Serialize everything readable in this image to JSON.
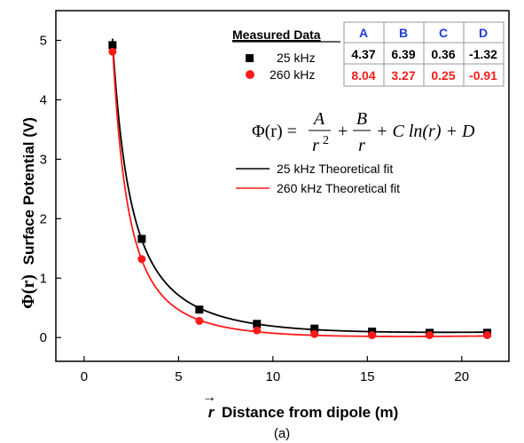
{
  "chart_data": {
    "type": "scatter",
    "title": "",
    "xlabel": "Distance from dipole (m)",
    "xlabel_vector": "r",
    "ylabel": "Surface Potential (V)",
    "ylabel_prefix": "Φ(r)",
    "xlim": [
      -1.5,
      22.5
    ],
    "ylim": [
      -0.4,
      5.5
    ],
    "x_ticks": [
      0,
      5,
      10,
      15,
      20
    ],
    "y_ticks": [
      0,
      1,
      2,
      3,
      4,
      5
    ],
    "grid": false,
    "legend_placement": "top-right",
    "legend_title": "Measured Data",
    "series": [
      {
        "name": "25 kHz",
        "marker": "square",
        "color": "#000000",
        "x": [
          1.5,
          3.05,
          6.1,
          9.15,
          12.2,
          15.25,
          18.3,
          21.35
        ],
        "y": [
          4.92,
          1.66,
          0.47,
          0.23,
          0.15,
          0.1,
          0.08,
          0.08
        ]
      },
      {
        "name": "260 kHz",
        "marker": "circle",
        "color": "#ff1a1a",
        "x": [
          1.5,
          3.05,
          6.1,
          9.15,
          12.2,
          15.25,
          18.3,
          21.35
        ],
        "y": [
          4.81,
          1.32,
          0.28,
          0.12,
          0.06,
          0.04,
          0.04,
          0.04
        ]
      }
    ],
    "fit_lines": [
      {
        "name": "25 kHz Theoretical fit",
        "color": "#000000",
        "A": 4.37,
        "B": 6.39,
        "C": 0.36,
        "D": -1.32
      },
      {
        "name": "260 kHz Theoretical fit",
        "color": "#ff1a1a",
        "A": 8.04,
        "B": 3.27,
        "C": 0.25,
        "D": -0.91
      }
    ],
    "fit_table": {
      "headers": [
        "A",
        "B",
        "C",
        "D"
      ],
      "rows": [
        {
          "color": "#000000",
          "values": [
            "4.37",
            "6.39",
            "0.36",
            "-1.32"
          ]
        },
        {
          "color": "#ff1a1a",
          "values": [
            "8.04",
            "3.27",
            "0.25",
            "-0.91"
          ]
        }
      ]
    },
    "formula": {
      "lhs": "Φ(r) =",
      "t1_num": "A",
      "t1_den": "r",
      "t1_exp": "2",
      "plus1": "+",
      "t2_num": "B",
      "t2_den": "r",
      "tail": "+ C ln(r) + D"
    },
    "caption": "(a)"
  }
}
